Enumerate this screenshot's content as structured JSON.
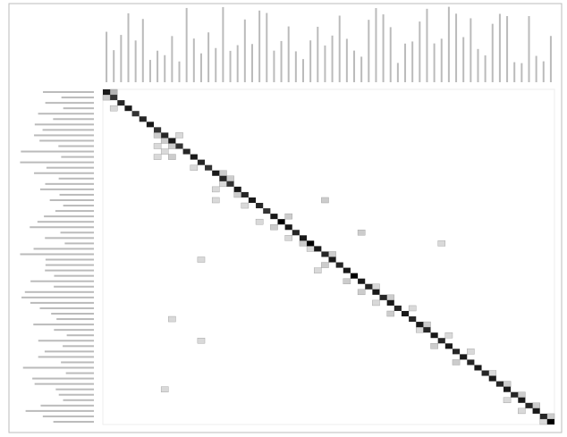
{
  "chart_data": {
    "type": "matrix",
    "categories": [
      null,
      null,
      null,
      null,
      null,
      null,
      null,
      null,
      null,
      null,
      null,
      null,
      null,
      null,
      null,
      null,
      null,
      null,
      null,
      null,
      null,
      null,
      null,
      null,
      null,
      null,
      null,
      null,
      null,
      null,
      null,
      null,
      null,
      null,
      null,
      null,
      null,
      null,
      null,
      null,
      null,
      null,
      null,
      null,
      null,
      null,
      null,
      null,
      null,
      null,
      null,
      null,
      null,
      null,
      null,
      null,
      null,
      null,
      null,
      null,
      null,
      null
    ],
    "color": "#000000",
    "diagonal": [
      0.9,
      0.8,
      0.85,
      0.9,
      0.8,
      0.85,
      0.9,
      0.8,
      0.85,
      0.9,
      0.8,
      0.85,
      0.9,
      0.85,
      0.8,
      0.9,
      0.85,
      0.8,
      0.9,
      0.85,
      0.9,
      0.85,
      0.8,
      0.9,
      1,
      0.9,
      0.85,
      0.9,
      1,
      0.9,
      0.85,
      0.9,
      0.85,
      0.9,
      1,
      0.9,
      0.85,
      0.9,
      0.85,
      0.9,
      0.85,
      0.9,
      0.85,
      0.9,
      0.85,
      0.9,
      0.85,
      0.9,
      0.85,
      0.9,
      0.85,
      0.9,
      0.85,
      0.9,
      0.85,
      0.9,
      0.85,
      0.9,
      0.85,
      0.9,
      0.85,
      1
    ],
    "off_diagonal": [
      {
        "row": 0,
        "col": 1,
        "value": 0.3
      },
      {
        "row": 1,
        "col": 0,
        "value": 0.2
      },
      {
        "row": 3,
        "col": 1,
        "value": 0.15
      },
      {
        "row": 8,
        "col": 7,
        "value": 0.2
      },
      {
        "row": 8,
        "col": 10,
        "value": 0.15
      },
      {
        "row": 9,
        "col": 8,
        "value": 0.2
      },
      {
        "row": 10,
        "col": 7,
        "value": 0.15
      },
      {
        "row": 10,
        "col": 9,
        "value": 0.2
      },
      {
        "row": 11,
        "col": 8,
        "value": 0.15
      },
      {
        "row": 12,
        "col": 7,
        "value": 0.15
      },
      {
        "row": 12,
        "col": 9,
        "value": 0.2
      },
      {
        "row": 14,
        "col": 12,
        "value": 0.15
      },
      {
        "row": 15,
        "col": 16,
        "value": 0.2
      },
      {
        "row": 16,
        "col": 17,
        "value": 0.2
      },
      {
        "row": 17,
        "col": 16,
        "value": 0.15
      },
      {
        "row": 18,
        "col": 15,
        "value": 0.15
      },
      {
        "row": 19,
        "col": 18,
        "value": 0.2
      },
      {
        "row": 20,
        "col": 15,
        "value": 0.15
      },
      {
        "row": 20,
        "col": 30,
        "value": 0.2
      },
      {
        "row": 21,
        "col": 19,
        "value": 0.15
      },
      {
        "row": 23,
        "col": 25,
        "value": 0.2
      },
      {
        "row": 24,
        "col": 21,
        "value": 0.15
      },
      {
        "row": 25,
        "col": 23,
        "value": 0.2
      },
      {
        "row": 26,
        "col": 35,
        "value": 0.2
      },
      {
        "row": 27,
        "col": 25,
        "value": 0.15
      },
      {
        "row": 28,
        "col": 27,
        "value": 0.2
      },
      {
        "row": 28,
        "col": 46,
        "value": 0.15
      },
      {
        "row": 29,
        "col": 28,
        "value": 0.15
      },
      {
        "row": 30,
        "col": 31,
        "value": 0.2
      },
      {
        "row": 31,
        "col": 13,
        "value": 0.15
      },
      {
        "row": 32,
        "col": 30,
        "value": 0.2
      },
      {
        "row": 33,
        "col": 29,
        "value": 0.15
      },
      {
        "row": 35,
        "col": 33,
        "value": 0.2
      },
      {
        "row": 36,
        "col": 37,
        "value": 0.15
      },
      {
        "row": 37,
        "col": 35,
        "value": 0.2
      },
      {
        "row": 38,
        "col": 39,
        "value": 0.2
      },
      {
        "row": 39,
        "col": 37,
        "value": 0.15
      },
      {
        "row": 40,
        "col": 42,
        "value": 0.15
      },
      {
        "row": 41,
        "col": 39,
        "value": 0.2
      },
      {
        "row": 42,
        "col": 9,
        "value": 0.15
      },
      {
        "row": 43,
        "col": 44,
        "value": 0.2
      },
      {
        "row": 44,
        "col": 43,
        "value": 0.15
      },
      {
        "row": 45,
        "col": 47,
        "value": 0.15
      },
      {
        "row": 46,
        "col": 13,
        "value": 0.15
      },
      {
        "row": 47,
        "col": 45,
        "value": 0.2
      },
      {
        "row": 48,
        "col": 50,
        "value": 0.15
      },
      {
        "row": 50,
        "col": 48,
        "value": 0.2
      },
      {
        "row": 52,
        "col": 53,
        "value": 0.15
      },
      {
        "row": 54,
        "col": 55,
        "value": 0.2
      },
      {
        "row": 55,
        "col": 8,
        "value": 0.15
      },
      {
        "row": 56,
        "col": 57,
        "value": 0.2
      },
      {
        "row": 57,
        "col": 55,
        "value": 0.15
      },
      {
        "row": 58,
        "col": 59,
        "value": 0.2
      },
      {
        "row": 59,
        "col": 57,
        "value": 0.15
      },
      {
        "row": 60,
        "col": 61,
        "value": 0.2
      },
      {
        "row": 61,
        "col": 60,
        "value": 0.15
      }
    ]
  }
}
